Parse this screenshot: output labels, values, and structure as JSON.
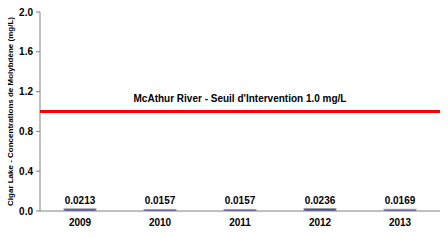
{
  "chart_data": {
    "type": "bar",
    "y_label": "Cigar Lake - Concentrations de Molybdène (mg/L)",
    "categories": [
      "2009",
      "2010",
      "2011",
      "2012",
      "2013"
    ],
    "values": [
      0.0213,
      0.0157,
      0.0157,
      0.0236,
      0.0169
    ],
    "color": "#3b3b9c",
    "data_labels": true,
    "ylim": [
      0,
      2
    ],
    "yticks": [
      {
        "value": 0,
        "label": "0.0"
      },
      {
        "value": 0.4,
        "label": "0.4"
      },
      {
        "value": 0.8,
        "label": "0.8"
      },
      {
        "value": 1.2,
        "label": "1.2"
      },
      {
        "value": 1.6,
        "label": "1.6"
      },
      {
        "value": 2,
        "label": "2.0"
      }
    ],
    "grid": false,
    "threshold": {
      "value": 1.0,
      "label": "McAthur River - Seuil d'Intervention 1.0 mg/L",
      "color": "#ff0000"
    }
  }
}
